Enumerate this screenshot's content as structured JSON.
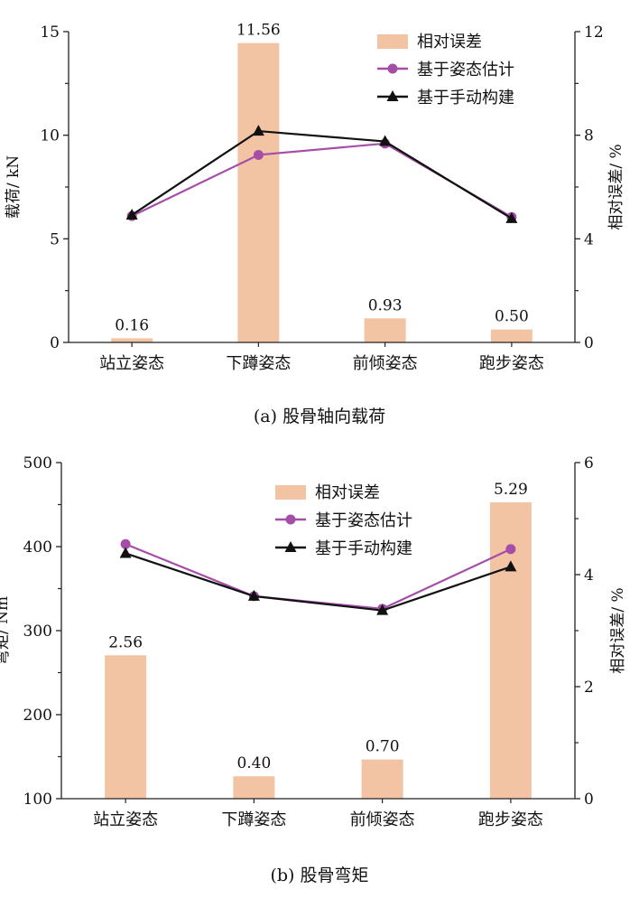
{
  "colors": {
    "bar": "#f2c4a3",
    "pose": "#a54ea8",
    "manual": "#111111",
    "axis": "#222222"
  },
  "chart_data": [
    {
      "type": "bar+line",
      "caption": "(a)  股骨轴向载荷",
      "categories": [
        "站立姿态",
        "下蹲姿态",
        "前倾姿态",
        "跑步姿态"
      ],
      "ylabel": "载荷/ kN",
      "ylim": [
        0,
        15
      ],
      "yticks": [
        0,
        5,
        10,
        15
      ],
      "y2label": "相对误差/ %",
      "y2lim": [
        0,
        12
      ],
      "y2ticks": [
        0,
        4,
        8,
        12
      ],
      "legend": [
        "相对误差",
        "基于姿态估计",
        "基于手动构建"
      ],
      "legend_position": "top-right",
      "bars": {
        "name": "相对误差",
        "axis": "right",
        "values": [
          0.16,
          11.56,
          0.93,
          0.5
        ],
        "labels": [
          "0.16",
          "11.56",
          "0.93",
          "0.50"
        ]
      },
      "series": [
        {
          "name": "基于姿态估计",
          "axis": "left",
          "values": [
            6.1,
            9.05,
            9.6,
            6.05
          ]
        },
        {
          "name": "基于手动构建",
          "axis": "left",
          "values": [
            6.15,
            10.2,
            9.7,
            5.98
          ]
        }
      ]
    },
    {
      "type": "bar+line",
      "caption": "(b)  股骨弯矩",
      "categories": [
        "站立姿态",
        "下蹲姿态",
        "前倾姿态",
        "跑步姿态"
      ],
      "ylabel": "弯矩/ Nm",
      "ylim": [
        100,
        500
      ],
      "yticks": [
        100,
        200,
        300,
        400,
        500
      ],
      "y2label": "相对误差/ %",
      "y2lim": [
        0,
        6
      ],
      "y2ticks": [
        0,
        2,
        4,
        6
      ],
      "legend": [
        "相对误差",
        "基于姿态估计",
        "基于手动构建"
      ],
      "legend_position": "top-center",
      "bars": {
        "name": "相对误差",
        "axis": "right",
        "values": [
          2.56,
          0.4,
          0.7,
          5.29
        ],
        "labels": [
          "2.56",
          "0.40",
          "0.70",
          "5.29"
        ]
      },
      "series": [
        {
          "name": "基于姿态估计",
          "axis": "left",
          "values": [
            403,
            341,
            326,
            397
          ]
        },
        {
          "name": "基于手动构建",
          "axis": "left",
          "values": [
            392,
            341,
            324,
            376
          ]
        }
      ]
    }
  ]
}
